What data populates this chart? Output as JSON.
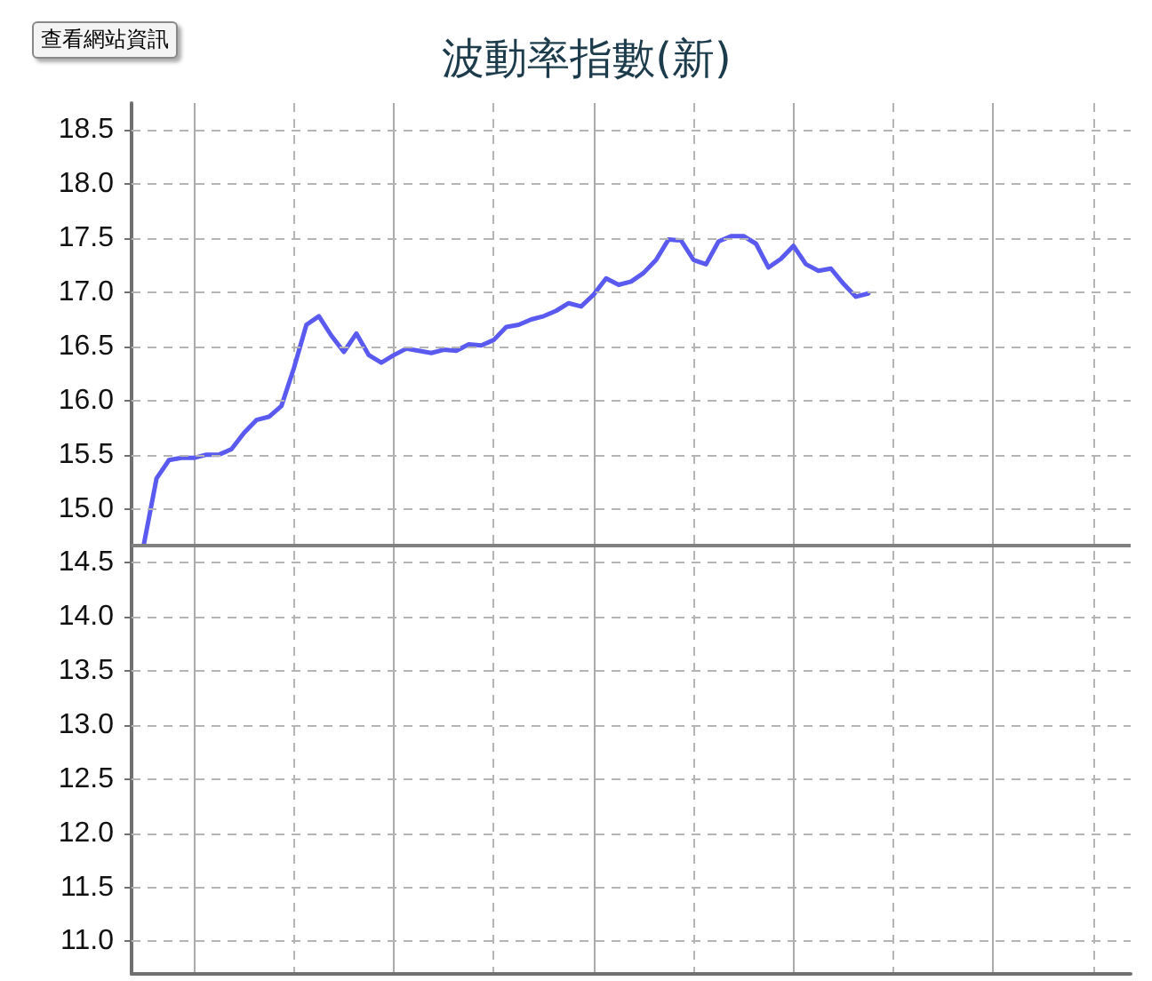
{
  "chart_data": {
    "type": "line",
    "title": "波動率指數(新)",
    "annotations": [
      "查看網站資訊"
    ],
    "categories": [
      null,
      null,
      null,
      null,
      null,
      null,
      null,
      null,
      null,
      null,
      null,
      null,
      null,
      null,
      null,
      null,
      null,
      null,
      null,
      null,
      null,
      null,
      null,
      null,
      null,
      null,
      null,
      null,
      null,
      null,
      null,
      null,
      null,
      null,
      null,
      null,
      null,
      null,
      null,
      null,
      null,
      null,
      null,
      null,
      null,
      null,
      null,
      null,
      null,
      null,
      null,
      null,
      null,
      null,
      null,
      null,
      null,
      null,
      null,
      null,
      null,
      null,
      null,
      null,
      null,
      null,
      null,
      null,
      null,
      null,
      null,
      null,
      null,
      null,
      null,
      null,
      null,
      null,
      null,
      null,
      null
    ],
    "series": [
      {
        "color": "#5a5af0",
        "values": [
          null,
          14.68,
          15.28,
          15.45,
          15.47,
          15.47,
          15.5,
          15.5,
          15.55,
          15.7,
          15.82,
          15.85,
          15.95,
          16.3,
          16.7,
          16.78,
          16.6,
          16.45,
          16.62,
          16.42,
          16.35,
          16.42,
          16.48,
          16.46,
          16.44,
          16.47,
          16.46,
          16.52,
          16.51,
          16.56,
          16.68,
          16.7,
          16.75,
          16.78,
          16.83,
          16.9,
          16.87,
          16.98,
          17.13,
          17.07,
          17.1,
          17.18,
          17.3,
          17.49,
          17.48,
          17.3,
          17.26,
          17.47,
          17.52,
          17.52,
          17.45,
          17.23,
          17.31,
          17.43,
          17.26,
          17.2,
          17.22,
          17.08,
          16.96,
          16.99,
          null,
          null,
          null,
          null,
          null,
          null,
          null,
          null,
          null,
          null,
          null,
          null,
          null,
          null,
          null,
          null,
          null,
          null,
          null,
          null,
          null
        ]
      }
    ],
    "ylim": [
      10.7,
      18.75
    ],
    "yticks": [
      {
        "value": 11,
        "label": "11.0"
      },
      11.5,
      {
        "value": 12,
        "label": "12.0"
      },
      12.5,
      {
        "value": 13,
        "label": "13.0"
      },
      13.5,
      {
        "value": 14,
        "label": "14.0"
      },
      14.5,
      {
        "value": 15,
        "label": "15.0"
      },
      15.5,
      {
        "value": 16,
        "label": "16.0"
      },
      16.5,
      {
        "value": 17,
        "label": "17.0"
      },
      17.5,
      {
        "value": 18,
        "label": "18.0"
      },
      18.5
    ],
    "ref_lines": [
      {
        "axis": "y",
        "value": 14.67,
        "color": "#808080"
      }
    ],
    "grid": true,
    "line_style": "solid",
    "tick_labels": "y"
  }
}
